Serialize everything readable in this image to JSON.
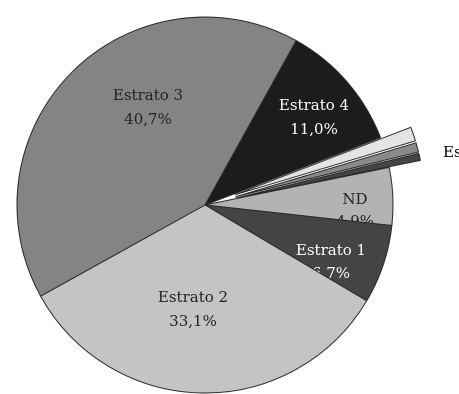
{
  "chart_data": {
    "type": "pie",
    "title": "",
    "legend": "none",
    "slices": [
      {
        "name": "Estrato 4",
        "value": 11.0,
        "value_label": "11,0%",
        "color": "#1e1b1c",
        "text_color": "#ffffff",
        "explode": 0
      },
      {
        "name": "Es",
        "value": 1.2,
        "value_label": "",
        "color": "#e4e4e4",
        "text_color": "#000000",
        "explode": 32
      },
      {
        "name": "",
        "value": 0.8,
        "value_label": "",
        "color": "#8a8a8a",
        "text_color": "#000000",
        "explode": 32
      },
      {
        "name": "",
        "value": 0.6,
        "value_label": "",
        "color": "#444444",
        "text_color": "#000000",
        "explode": 32
      },
      {
        "name": "ND",
        "value": 4.9,
        "value_label": "4,9%",
        "color": "#b3b3b3",
        "text_color": "#222222",
        "explode": 0
      },
      {
        "name": "Estrato 1",
        "value": 6.7,
        "value_label": "6,7%",
        "color": "#444444",
        "text_color": "#ffffff",
        "explode": 0
      },
      {
        "name": "Estrato 2",
        "value": 33.1,
        "value_label": "33,1%",
        "color": "#c4c4c4",
        "text_color": "#222222",
        "explode": 0
      },
      {
        "name": "Estrato 3",
        "value": 40.7,
        "value_label": "40,7%",
        "color": "#848484",
        "text_color": "#222222",
        "explode": 0
      }
    ]
  }
}
